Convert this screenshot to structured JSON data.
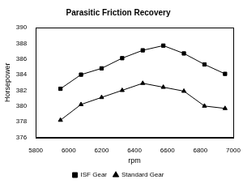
{
  "chart_data": {
    "type": "line",
    "title": "Parasitic Friction Recovery",
    "x_label": "rpm",
    "y_label": "Horsepower",
    "series": [
      {
        "name": "ISF Gear",
        "color": "#000000",
        "marker": "square",
        "x": [
          5950,
          6075,
          6200,
          6325,
          6450,
          6575,
          6700,
          6825,
          6950
        ],
        "values": [
          382.2,
          384.0,
          384.8,
          386.1,
          387.1,
          387.7,
          386.7,
          385.3,
          384.1
        ]
      },
      {
        "name": "Standard Gear",
        "color": "#000000",
        "marker": "triangle",
        "x": [
          5950,
          6075,
          6200,
          6325,
          6450,
          6575,
          6700,
          6825,
          6950
        ],
        "values": [
          378.2,
          380.2,
          381.1,
          382.0,
          382.9,
          382.4,
          381.9,
          380.0,
          379.7
        ]
      }
    ],
    "xlim": [
      5800,
      7000
    ],
    "xticks": [
      5800,
      6000,
      6200,
      6400,
      6600,
      6800,
      7000
    ],
    "ylim": [
      376,
      390
    ],
    "yticks": [
      376,
      378,
      380,
      382,
      384,
      386,
      388,
      390
    ],
    "grid": false,
    "legend": "bottom"
  }
}
